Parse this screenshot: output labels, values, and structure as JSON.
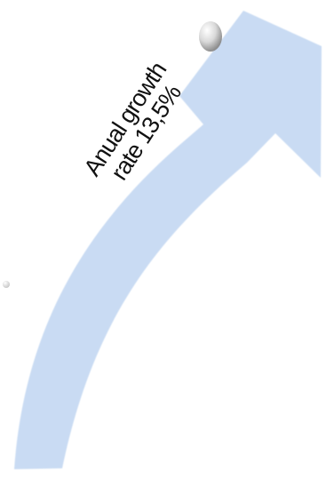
{
  "arrow": {
    "label_line1": "Anual growth",
    "label_line2": "rate 13,5%",
    "fill_color": "#c9dbf3",
    "text_color": "#111111"
  },
  "decorations": {
    "dot_color_light": "#f2f2f2",
    "dot_color_dark": "#8e8e8e"
  }
}
